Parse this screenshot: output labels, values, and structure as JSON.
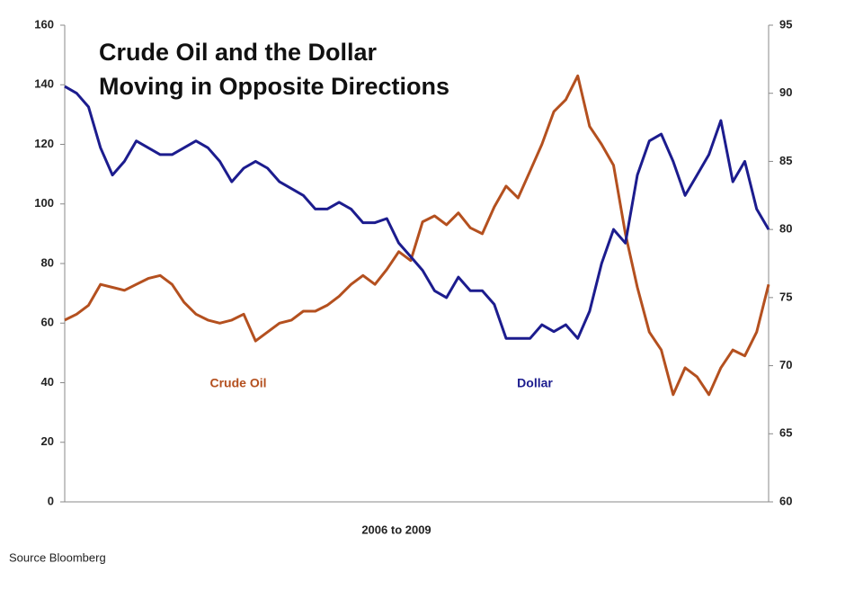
{
  "chart_data": {
    "type": "line",
    "title": [
      "Crude Oil and the Dollar",
      "Moving in Opposite Directions"
    ],
    "xlabel": "2006 to 2009",
    "source": "Source Bloomberg",
    "ylim": [
      0,
      160
    ],
    "yticks": [
      0,
      20,
      40,
      60,
      80,
      100,
      120,
      140,
      160
    ],
    "y2lim": [
      60,
      95
    ],
    "y2ticks": [
      60,
      65,
      70,
      75,
      80,
      85,
      90,
      95
    ],
    "series": [
      {
        "name": "Crude Oil",
        "color": "#b4501f",
        "values": [
          61,
          63,
          66,
          73,
          72,
          71,
          73,
          75,
          76,
          73,
          67,
          63,
          61,
          60,
          61,
          63,
          54,
          57,
          60,
          61,
          64,
          64,
          66,
          69,
          73,
          76,
          73,
          78,
          84,
          81,
          94,
          96,
          93,
          97,
          92,
          90,
          99,
          106,
          102,
          111,
          120,
          131,
          135,
          143,
          126,
          120,
          113,
          90,
          72,
          57,
          51,
          36,
          45,
          42,
          36,
          45,
          51,
          49,
          57,
          73
        ]
      },
      {
        "name": "Dollar",
        "color": "#1c1c8e",
        "axis": "y2",
        "values": [
          90.5,
          90,
          89,
          86,
          84,
          85,
          86.5,
          86,
          85.5,
          85.5,
          86,
          86.5,
          86,
          85,
          83.5,
          84.5,
          85,
          84.5,
          83.5,
          83,
          82.5,
          81.5,
          81.5,
          82,
          81.5,
          80.5,
          80.5,
          80.8,
          79,
          78,
          77,
          75.5,
          75,
          76.5,
          75.5,
          75.5,
          74.5,
          72,
          72,
          72,
          73,
          72.5,
          73,
          72,
          74,
          77.5,
          80,
          79,
          84,
          86.5,
          87,
          85,
          82.5,
          84,
          85.5,
          88,
          83.5,
          85,
          81.5,
          80
        ]
      }
    ]
  }
}
